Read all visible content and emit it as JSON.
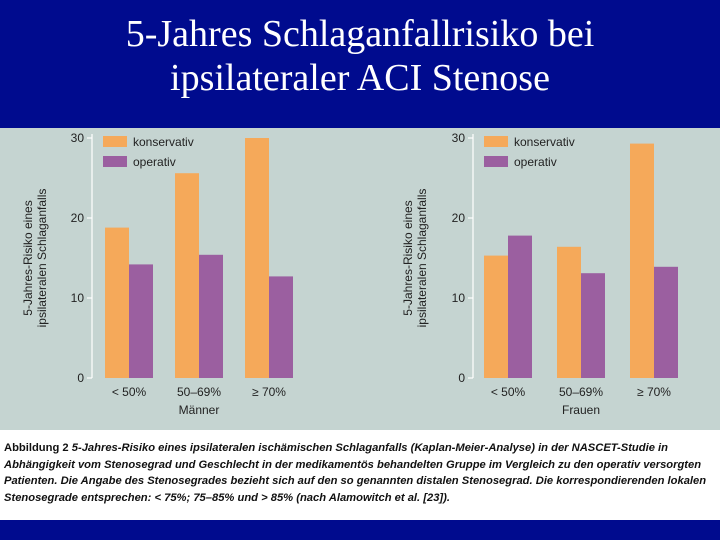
{
  "slide": {
    "title_line1": "5-Jahres Schlaganfallrisiko bei",
    "title_line2": "ipsilateraler ACI Stenose"
  },
  "colors": {
    "konservativ": "#f5a95a",
    "operativ": "#9b5fa0",
    "background": "#000b8e",
    "panel": "#c5d4d1"
  },
  "chart_data": [
    {
      "type": "bar",
      "categories": [
        "< 50%",
        "50–69%",
        "≥ 70%"
      ],
      "xlabel": "Männer",
      "ylabel_line1": "5-Jahres-Risiko eines",
      "ylabel_line2": "ipsilateralen Schlaganfalls",
      "ylim": [
        0,
        30
      ],
      "yticks": [
        0,
        10,
        20,
        30
      ],
      "legend_position": "top-left",
      "series": [
        {
          "name": "konservativ",
          "values": [
            18.8,
            25.6,
            30.0
          ]
        },
        {
          "name": "operativ",
          "values": [
            14.2,
            15.4,
            12.7
          ]
        }
      ]
    },
    {
      "type": "bar",
      "categories": [
        "< 50%",
        "50–69%",
        "≥ 70%"
      ],
      "xlabel": "Frauen",
      "ylabel_line1": "5-Jahres-Risiko eines",
      "ylabel_line2": "ipsilateralen Schlaganfalls",
      "ylim": [
        0,
        30
      ],
      "yticks": [
        0,
        10,
        20,
        30
      ],
      "legend_position": "top-left",
      "series": [
        {
          "name": "konservativ",
          "values": [
            15.3,
            16.4,
            29.3
          ]
        },
        {
          "name": "operativ",
          "values": [
            17.8,
            13.1,
            13.9
          ]
        }
      ]
    }
  ],
  "caption": {
    "lead": "Abbildung 2",
    "text": "5-Jahres-Risiko eines ipsilateralen ischämischen Schlaganfalls (Kaplan-Meier-Analyse) in der NASCET-Studie in Abhängigkeit vom Stenosegrad und Geschlecht in der medikamentös behandelten Gruppe im Vergleich zu den operativ versorgten Patienten. Die Angabe des Stenosegrades bezieht sich auf den so genannten distalen Stenosegrad. Die korrespondierenden lokalen Stenosegrade entsprechen: < 75%; 75–85% und > 85% (nach Alamowitch et al. [23])."
  }
}
